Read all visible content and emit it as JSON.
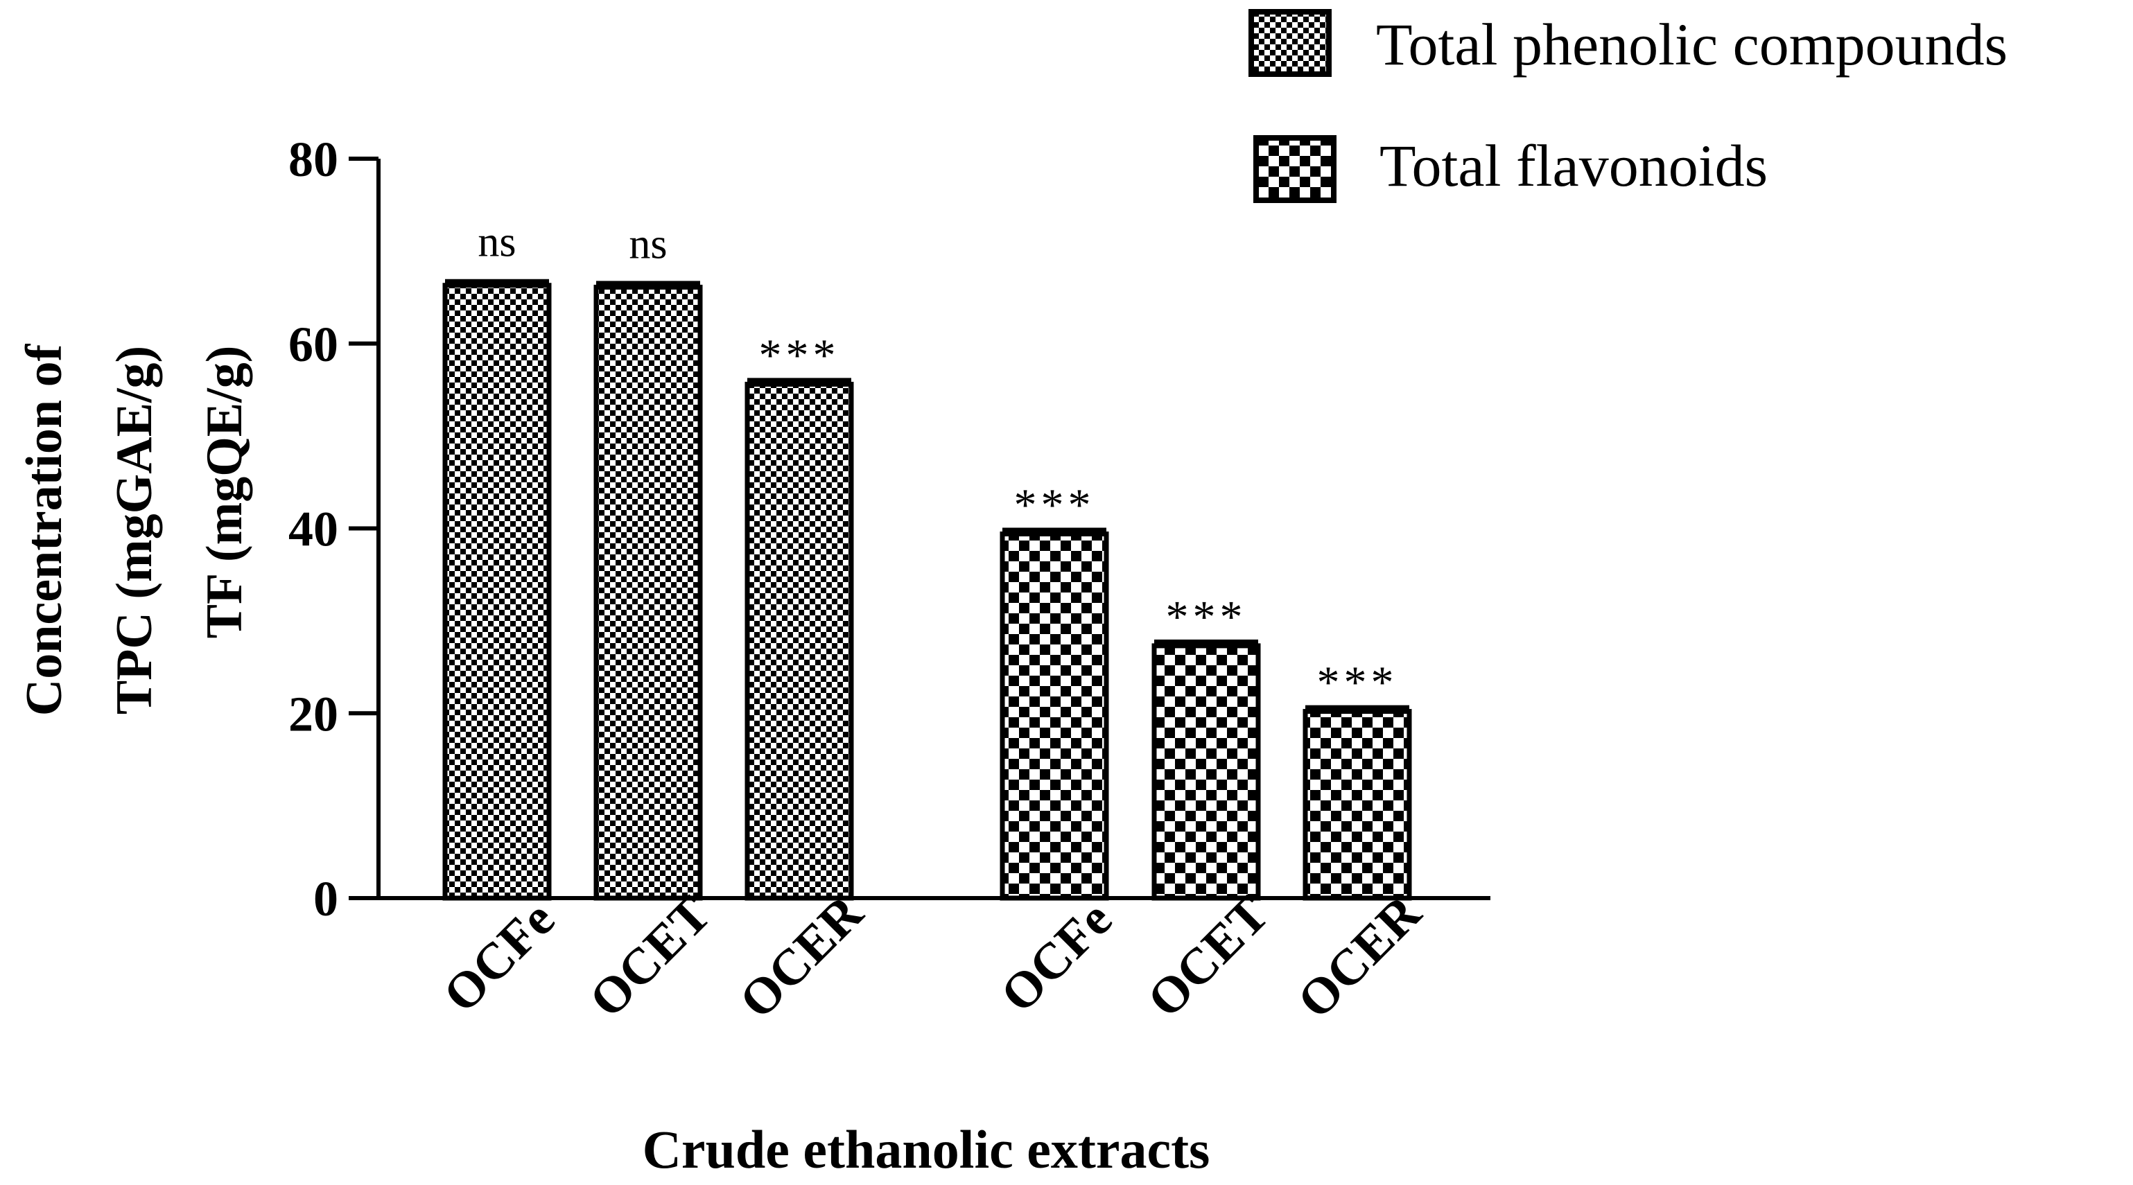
{
  "chart_data": {
    "type": "bar",
    "title": "",
    "xlabel": "Crude ethanolic extracts",
    "ylabel_lines": [
      "Concentration of",
      "TPC (mgGAE/g)",
      "TF (mgQE/g)"
    ],
    "ylim": [
      0,
      80
    ],
    "yticks": [
      0,
      20,
      40,
      60,
      80
    ],
    "legend_position": "top-right",
    "series": [
      {
        "name": "Total phenolic compounds",
        "pattern": "fine-checker",
        "categories": [
          "OCFe",
          "OCET",
          "OCER"
        ],
        "values": [
          66.3,
          66.1,
          55.6
        ],
        "annotations": [
          "ns",
          "ns",
          "***"
        ]
      },
      {
        "name": "Total flavonoids",
        "pattern": "coarse-checker",
        "categories": [
          "OCFe",
          "OCET",
          "OCER"
        ],
        "values": [
          39.4,
          27.3,
          20.2
        ],
        "annotations": [
          "***",
          "***",
          "***"
        ]
      }
    ]
  },
  "colors": {
    "ink": "#000000",
    "paper": "#ffffff"
  }
}
